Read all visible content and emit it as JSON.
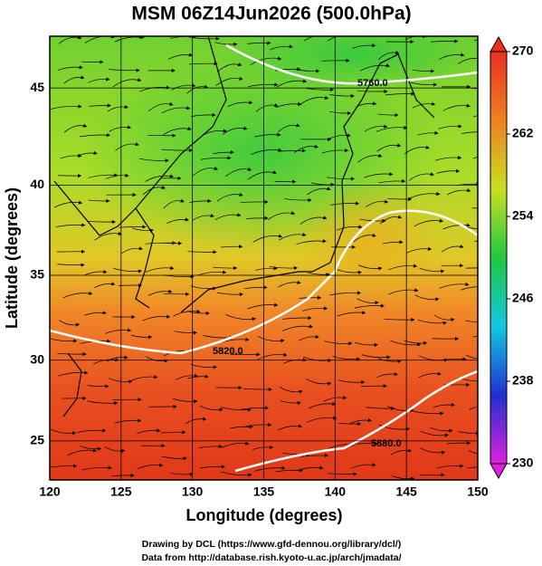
{
  "chart_data": {
    "type": "map",
    "title": "MSM 06Z14Jun2026 (500.0hPa)",
    "xlabel": "Longitude (degrees)",
    "ylabel": "Latitude  (degrees)",
    "projection": "mercator",
    "xlim": [
      120,
      150
    ],
    "ylim": [
      22.5,
      47.5
    ],
    "xticks": [
      120,
      125,
      130,
      135,
      140,
      145,
      150
    ],
    "yticks": [
      25,
      30,
      35,
      40,
      45
    ],
    "grid": true,
    "colorbar": {
      "lim": [
        230,
        270
      ],
      "ticks": [
        230,
        238,
        246,
        254,
        262,
        270
      ],
      "colormap": [
        "#e020e0",
        "#2030d0",
        "#10c8e0",
        "#20c840",
        "#c8e020",
        "#f08020",
        "#e83020"
      ]
    },
    "annotations": [
      "5760.0",
      "5820.0",
      "5880.0"
    ],
    "credits": [
      "Drawing by DCL (https://www.gfd-dennou.org/library/dcl/)",
      "Data from http://database.rish.kyoto-u.ac.jp/arch/jmadata/"
    ]
  }
}
